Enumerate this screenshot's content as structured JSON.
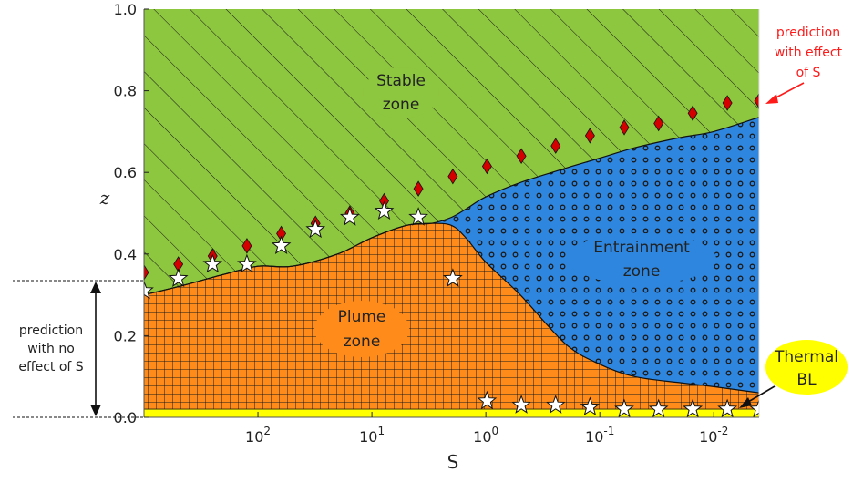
{
  "chart_data": {
    "type": "area",
    "title": "",
    "xlabel": "S",
    "ylabel": "z",
    "x_scale": "log",
    "x_reversed": true,
    "xlim": [
      1000,
      0.004
    ],
    "ylim": [
      0,
      1.0
    ],
    "x_tick_labels": [
      "10^2",
      "10^1",
      "10^0",
      "10^-1",
      "10^-2"
    ],
    "x_tick_values": [
      100,
      10,
      1,
      0.1,
      0.01
    ],
    "y_tick_labels": [
      "0.0",
      "0.2",
      "0.4",
      "0.6",
      "0.8",
      "1.0"
    ],
    "y_tick_values": [
      0.0,
      0.2,
      0.4,
      0.6,
      0.8,
      1.0
    ],
    "grid": false,
    "zones": [
      {
        "name": "Stable zone",
        "label_lines": [
          "Stable",
          "zone"
        ],
        "color": "#8dc63f",
        "pattern": "diagonal hatch"
      },
      {
        "name": "Entrainment zone",
        "label_lines": [
          "Entrainment",
          "zone"
        ],
        "color": "#2e86de",
        "pattern": "dots"
      },
      {
        "name": "Plume zone",
        "label_lines": [
          "Plume",
          "zone"
        ],
        "color": "#ff8c1a",
        "pattern": "grid"
      },
      {
        "name": "Thermal BL",
        "label_lines": [
          "Thermal",
          "BL"
        ],
        "color": "#ffff00",
        "pattern": "none"
      }
    ],
    "boundaries": {
      "stable_lower": {
        "x": [
          1000,
          500,
          200,
          100,
          50,
          20,
          10,
          5,
          3,
          2,
          1.5,
          1,
          0.5,
          0.2,
          0.1,
          0.05,
          0.02,
          0.01,
          0.004
        ],
        "y": [
          0.3,
          0.32,
          0.35,
          0.37,
          0.37,
          0.4,
          0.44,
          0.47,
          0.475,
          0.49,
          0.51,
          0.54,
          0.575,
          0.61,
          0.635,
          0.66,
          0.685,
          0.7,
          0.735
        ]
      },
      "plume_upper": {
        "x": [
          1000,
          500,
          200,
          100,
          50,
          20,
          10,
          5,
          3,
          2,
          1.5,
          1,
          0.5,
          0.2,
          0.1,
          0.05,
          0.02,
          0.01,
          0.004
        ],
        "y": [
          0.3,
          0.32,
          0.35,
          0.37,
          0.37,
          0.4,
          0.44,
          0.47,
          0.475,
          0.47,
          0.44,
          0.38,
          0.3,
          0.18,
          0.13,
          0.1,
          0.085,
          0.075,
          0.06
        ]
      },
      "thermal_bl_top": 0.02
    },
    "series": [
      {
        "name": "prediction with effect of S",
        "marker": "diamond",
        "color": "#d40000",
        "x": [
          1000,
          500,
          250,
          125,
          62.5,
          31.25,
          15.63,
          7.81,
          3.91,
          1.95,
          0.977,
          0.488,
          0.244,
          0.122,
          0.061,
          0.0305,
          0.0153,
          0.0076,
          0.004
        ],
        "y": [
          0.355,
          0.375,
          0.395,
          0.42,
          0.45,
          0.475,
          0.5,
          0.53,
          0.56,
          0.59,
          0.615,
          0.64,
          0.665,
          0.69,
          0.71,
          0.72,
          0.745,
          0.77,
          0.775
        ]
      },
      {
        "name": "white stars",
        "marker": "star",
        "color": "#ffffff",
        "x": [
          1000,
          500,
          250,
          125,
          62.5,
          31.25,
          15.63,
          7.81,
          3.91,
          1.95,
          0.977,
          0.488,
          0.244,
          0.122,
          0.061,
          0.0305,
          0.0153,
          0.0076,
          0.004
        ],
        "y": [
          0.31,
          0.34,
          0.375,
          0.375,
          0.42,
          0.46,
          0.49,
          0.505,
          0.49,
          0.34,
          0.04,
          0.03,
          0.03,
          0.025,
          0.02,
          0.02,
          0.02,
          0.02,
          0.02
        ]
      }
    ],
    "annotations": {
      "effect_of_s": [
        "prediction",
        "with effect",
        "of S"
      ],
      "no_effect_of_s": [
        "prediction",
        "with no",
        "effect of S"
      ],
      "no_effect_range": [
        0.0,
        0.33
      ]
    }
  }
}
